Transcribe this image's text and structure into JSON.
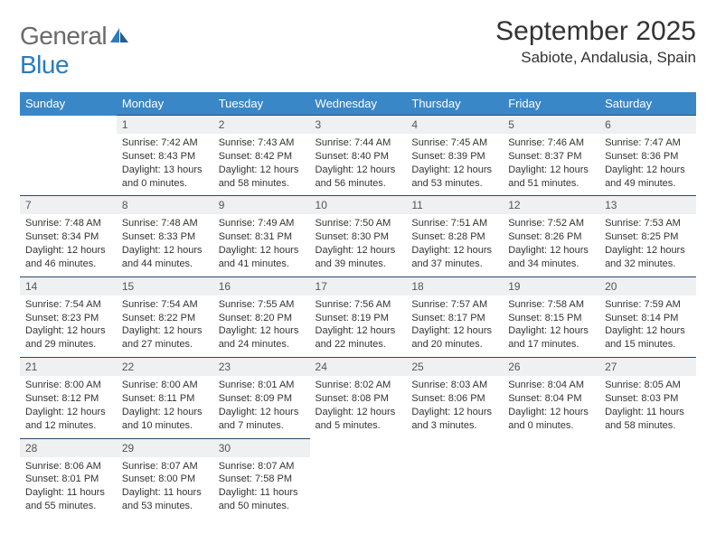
{
  "logo": {
    "part1": "General",
    "part2": "Blue"
  },
  "title": "September 2025",
  "location": "Sabiote, Andalusia, Spain",
  "colors": {
    "header_bg": "#3a87c7",
    "header_text": "#ffffff",
    "daynum_bg": "#eef0f1",
    "row_border": "#2b4a6b",
    "logo_gray": "#6a6a6a",
    "logo_blue": "#2a7bbf"
  },
  "day_headers": [
    "Sunday",
    "Monday",
    "Tuesday",
    "Wednesday",
    "Thursday",
    "Friday",
    "Saturday"
  ],
  "weeks": [
    [
      null,
      {
        "n": "1",
        "sr": "7:42 AM",
        "ss": "8:43 PM",
        "dl": "13 hours and 0 minutes."
      },
      {
        "n": "2",
        "sr": "7:43 AM",
        "ss": "8:42 PM",
        "dl": "12 hours and 58 minutes."
      },
      {
        "n": "3",
        "sr": "7:44 AM",
        "ss": "8:40 PM",
        "dl": "12 hours and 56 minutes."
      },
      {
        "n": "4",
        "sr": "7:45 AM",
        "ss": "8:39 PM",
        "dl": "12 hours and 53 minutes."
      },
      {
        "n": "5",
        "sr": "7:46 AM",
        "ss": "8:37 PM",
        "dl": "12 hours and 51 minutes."
      },
      {
        "n": "6",
        "sr": "7:47 AM",
        "ss": "8:36 PM",
        "dl": "12 hours and 49 minutes."
      }
    ],
    [
      {
        "n": "7",
        "sr": "7:48 AM",
        "ss": "8:34 PM",
        "dl": "12 hours and 46 minutes."
      },
      {
        "n": "8",
        "sr": "7:48 AM",
        "ss": "8:33 PM",
        "dl": "12 hours and 44 minutes."
      },
      {
        "n": "9",
        "sr": "7:49 AM",
        "ss": "8:31 PM",
        "dl": "12 hours and 41 minutes."
      },
      {
        "n": "10",
        "sr": "7:50 AM",
        "ss": "8:30 PM",
        "dl": "12 hours and 39 minutes."
      },
      {
        "n": "11",
        "sr": "7:51 AM",
        "ss": "8:28 PM",
        "dl": "12 hours and 37 minutes."
      },
      {
        "n": "12",
        "sr": "7:52 AM",
        "ss": "8:26 PM",
        "dl": "12 hours and 34 minutes."
      },
      {
        "n": "13",
        "sr": "7:53 AM",
        "ss": "8:25 PM",
        "dl": "12 hours and 32 minutes."
      }
    ],
    [
      {
        "n": "14",
        "sr": "7:54 AM",
        "ss": "8:23 PM",
        "dl": "12 hours and 29 minutes."
      },
      {
        "n": "15",
        "sr": "7:54 AM",
        "ss": "8:22 PM",
        "dl": "12 hours and 27 minutes."
      },
      {
        "n": "16",
        "sr": "7:55 AM",
        "ss": "8:20 PM",
        "dl": "12 hours and 24 minutes."
      },
      {
        "n": "17",
        "sr": "7:56 AM",
        "ss": "8:19 PM",
        "dl": "12 hours and 22 minutes."
      },
      {
        "n": "18",
        "sr": "7:57 AM",
        "ss": "8:17 PM",
        "dl": "12 hours and 20 minutes."
      },
      {
        "n": "19",
        "sr": "7:58 AM",
        "ss": "8:15 PM",
        "dl": "12 hours and 17 minutes."
      },
      {
        "n": "20",
        "sr": "7:59 AM",
        "ss": "8:14 PM",
        "dl": "12 hours and 15 minutes."
      }
    ],
    [
      {
        "n": "21",
        "sr": "8:00 AM",
        "ss": "8:12 PM",
        "dl": "12 hours and 12 minutes."
      },
      {
        "n": "22",
        "sr": "8:00 AM",
        "ss": "8:11 PM",
        "dl": "12 hours and 10 minutes."
      },
      {
        "n": "23",
        "sr": "8:01 AM",
        "ss": "8:09 PM",
        "dl": "12 hours and 7 minutes."
      },
      {
        "n": "24",
        "sr": "8:02 AM",
        "ss": "8:08 PM",
        "dl": "12 hours and 5 minutes."
      },
      {
        "n": "25",
        "sr": "8:03 AM",
        "ss": "8:06 PM",
        "dl": "12 hours and 3 minutes."
      },
      {
        "n": "26",
        "sr": "8:04 AM",
        "ss": "8:04 PM",
        "dl": "12 hours and 0 minutes."
      },
      {
        "n": "27",
        "sr": "8:05 AM",
        "ss": "8:03 PM",
        "dl": "11 hours and 58 minutes."
      }
    ],
    [
      {
        "n": "28",
        "sr": "8:06 AM",
        "ss": "8:01 PM",
        "dl": "11 hours and 55 minutes."
      },
      {
        "n": "29",
        "sr": "8:07 AM",
        "ss": "8:00 PM",
        "dl": "11 hours and 53 minutes."
      },
      {
        "n": "30",
        "sr": "8:07 AM",
        "ss": "7:58 PM",
        "dl": "11 hours and 50 minutes."
      },
      null,
      null,
      null,
      null
    ]
  ],
  "labels": {
    "sunrise": "Sunrise:",
    "sunset": "Sunset:",
    "daylight": "Daylight:"
  }
}
